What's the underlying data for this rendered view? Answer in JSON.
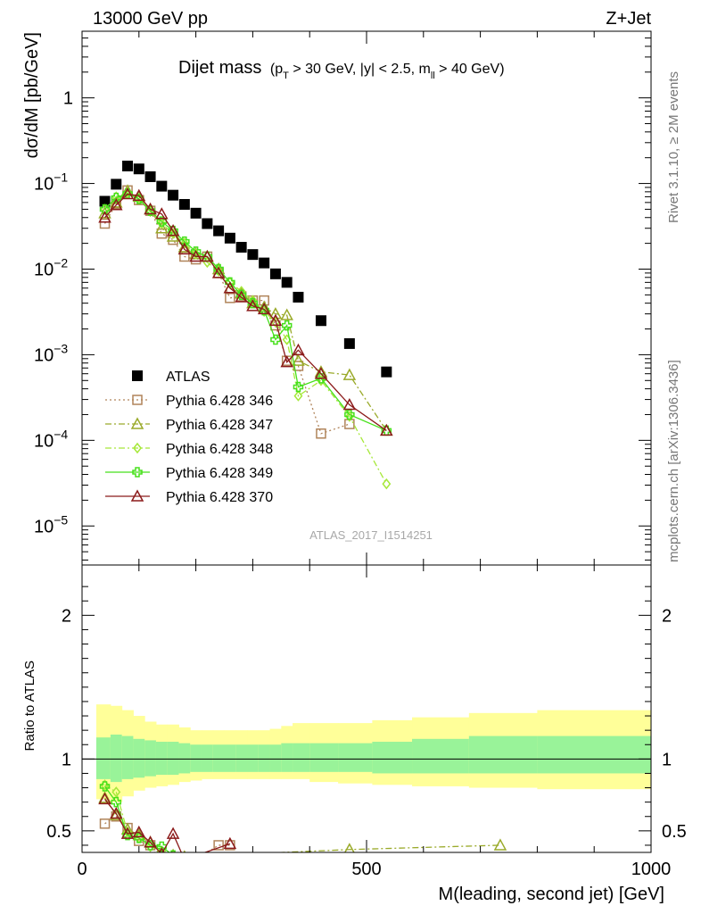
{
  "header": {
    "energy_label": "13000 GeV pp",
    "process_label": "Z+Jet"
  },
  "side_labels": {
    "right_top": "Rivet 3.1.10, ≥ 2M events",
    "right_bottom": "mcplots.cern.ch [arXiv:1306.3436]"
  },
  "chart_data": [
    {
      "type": "scatter",
      "title": "Dijet mass",
      "title_main": "Dijet mass",
      "title_pt_p": "p",
      "title_pt_sub": "T",
      "title_pt_rest": " > 30 GeV, |y| < 2.5, m",
      "title_m_sub": "ll",
      "title_m_rest": " > 40 GeV)",
      "title_open": "(",
      "ylabel": "dσ/dM [pb/GeV]",
      "xlabel": "M(leading, second jet) [GeV]",
      "yscale": "log",
      "xlim": [
        0,
        1000
      ],
      "ylim": [
        3.5e-06,
        6.0
      ],
      "y_ticks": [
        {
          "value": 1,
          "label": "1",
          "exp": ""
        },
        {
          "value": 0.1,
          "label": "10",
          "exp": "−1"
        },
        {
          "value": 0.01,
          "label": "10",
          "exp": "−2"
        },
        {
          "value": 0.001,
          "label": "10",
          "exp": "−3"
        },
        {
          "value": 0.0001,
          "label": "10",
          "exp": "−4"
        },
        {
          "value": 1e-05,
          "label": "10",
          "exp": "−5"
        }
      ],
      "watermark": "ATLAS_2017_I1514251",
      "legend_position": "lower-left",
      "x": [
        40,
        60,
        80,
        100,
        120,
        140,
        160,
        180,
        200,
        220,
        240,
        260,
        280,
        300,
        320,
        340,
        360,
        380,
        420,
        470,
        535,
        625,
        735,
        900
      ],
      "series": [
        {
          "name": "ATLAS",
          "color": "#000000",
          "marker": "square-filled",
          "values": [
            0.062,
            0.098,
            0.16,
            0.148,
            0.12,
            0.093,
            0.073,
            0.057,
            0.045,
            0.034,
            0.028,
            0.023,
            0.018,
            0.0148,
            0.0118,
            0.0088,
            0.007,
            0.0047,
            0.0025,
            0.00135,
            0.00063,
            null,
            null,
            null
          ]
        },
        {
          "name": "Pythia 6.428 346",
          "color": "#b0845a",
          "marker": "square-open",
          "line": "dotted",
          "values": [
            0.034,
            0.058,
            0.083,
            0.064,
            0.048,
            0.026,
            0.022,
            0.014,
            0.013,
            0.014,
            0.009,
            0.0046,
            0.0048,
            0.0043,
            0.0043,
            0.0022,
            0.00085,
            0.00074,
            0.00012,
            0.000155,
            null,
            null,
            null,
            null
          ]
        },
        {
          "name": "Pythia 6.428 347",
          "color": "#9aaa2a",
          "marker": "triangle-open",
          "line": "dashdot",
          "values": [
            0.045,
            0.06,
            0.082,
            0.07,
            0.05,
            0.03,
            0.024,
            0.018,
            0.015,
            0.014,
            0.01,
            0.006,
            0.0052,
            0.004,
            0.0036,
            0.003,
            0.0029,
            0.00085,
            0.00063,
            0.00058,
            0.00013,
            null,
            null,
            null
          ]
        },
        {
          "name": "Pythia 6.428 348",
          "color": "#a6e83a",
          "marker": "diamond-open",
          "line": "dashdot",
          "values": [
            0.05,
            0.07,
            0.078,
            0.066,
            0.047,
            0.034,
            0.026,
            0.02,
            0.015,
            0.012,
            0.0095,
            0.007,
            0.0055,
            0.0043,
            0.0032,
            0.0024,
            0.0015,
            0.00033,
            0.0005,
            0.00019,
            3.1e-05,
            null,
            null,
            null
          ]
        },
        {
          "name": "Pythia 6.428 349",
          "color": "#46e01a",
          "marker": "cross-open",
          "line": "solid",
          "values": [
            0.05,
            0.068,
            0.076,
            0.066,
            0.048,
            0.036,
            0.028,
            0.021,
            0.016,
            0.014,
            0.01,
            0.007,
            0.005,
            0.004,
            0.0033,
            0.0015,
            0.0022,
            0.00042,
            0.00053,
            0.0002,
            0.00013,
            null,
            null,
            null
          ]
        },
        {
          "name": "Pythia 6.428 370",
          "color": "#8b1a1a",
          "marker": "triangle-open",
          "line": "solid",
          "values": [
            0.04,
            0.056,
            0.075,
            0.072,
            0.05,
            0.044,
            0.028,
            0.017,
            0.014,
            0.014,
            0.009,
            0.006,
            0.0047,
            0.0037,
            0.0034,
            0.0025,
            0.00082,
            0.00113,
            0.0006,
            0.00026,
            0.00013,
            null,
            null,
            null
          ]
        }
      ]
    },
    {
      "type": "scatter",
      "ylabel": "Ratio to ATLAS",
      "xlim": [
        0,
        1000
      ],
      "ylim": [
        0.35,
        2.35
      ],
      "x_ticks": [
        {
          "value": 0,
          "label": "0"
        },
        {
          "value": 500,
          "label": "500"
        },
        {
          "value": 1000,
          "label": "1000"
        }
      ],
      "y_ticks": [
        {
          "value": 0.5,
          "label": "0.5"
        },
        {
          "value": 1,
          "label": "1"
        },
        {
          "value": 2,
          "label": "2"
        }
      ],
      "bands": {
        "edges": [
          25,
          50,
          70,
          90,
          110,
          130,
          150,
          170,
          190,
          210,
          230,
          250,
          270,
          290,
          310,
          330,
          350,
          370,
          400,
          450,
          510,
          580,
          680,
          800,
          1000
        ],
        "green_color": "#99f399",
        "yellow_color": "#ffff99",
        "green_lo": [
          0.86,
          0.84,
          0.86,
          0.87,
          0.88,
          0.89,
          0.89,
          0.9,
          0.91,
          0.91,
          0.91,
          0.91,
          0.91,
          0.91,
          0.91,
          0.91,
          0.91,
          0.91,
          0.91,
          0.91,
          0.9,
          0.9,
          0.9,
          0.9
        ],
        "green_hi": [
          1.15,
          1.17,
          1.16,
          1.14,
          1.13,
          1.12,
          1.12,
          1.11,
          1.1,
          1.1,
          1.1,
          1.1,
          1.1,
          1.1,
          1.1,
          1.1,
          1.11,
          1.11,
          1.11,
          1.11,
          1.12,
          1.14,
          1.16,
          1.16
        ],
        "yellow_lo": [
          0.72,
          0.7,
          0.74,
          0.78,
          0.8,
          0.81,
          0.82,
          0.84,
          0.85,
          0.86,
          0.86,
          0.86,
          0.86,
          0.86,
          0.86,
          0.86,
          0.86,
          0.86,
          0.84,
          0.83,
          0.82,
          0.81,
          0.8,
          0.79
        ],
        "yellow_hi": [
          1.38,
          1.37,
          1.34,
          1.3,
          1.26,
          1.24,
          1.24,
          1.22,
          1.2,
          1.2,
          1.2,
          1.2,
          1.2,
          1.2,
          1.2,
          1.21,
          1.23,
          1.25,
          1.25,
          1.25,
          1.27,
          1.29,
          1.32,
          1.34
        ]
      },
      "ratio_series": [
        {
          "name": "Pythia 6.428 346",
          "x": [
            40,
            60,
            80,
            100,
            120,
            140,
            160,
            180,
            240,
            260
          ],
          "values": [
            0.55,
            0.6,
            0.52,
            0.43,
            0.4,
            0.27,
            0.3,
            0.25,
            0.4,
            0.4
          ]
        },
        {
          "name": "Pythia 6.428 347",
          "x": [
            40,
            60,
            80,
            100,
            120,
            140,
            160,
            180,
            470,
            735
          ],
          "values": [
            0.73,
            0.61,
            0.51,
            0.47,
            0.42,
            0.32,
            0.33,
            0.32,
            0.37,
            0.4
          ]
        },
        {
          "name": "Pythia 6.428 348",
          "x": [
            40,
            60,
            80,
            100,
            120,
            140,
            160,
            180
          ],
          "values": [
            0.82,
            0.77,
            0.49,
            0.45,
            0.39,
            0.36,
            0.3,
            0.28
          ]
        },
        {
          "name": "Pythia 6.428 349",
          "x": [
            40,
            60,
            80,
            100,
            120,
            140,
            160,
            180
          ],
          "values": [
            0.81,
            0.7,
            0.47,
            0.45,
            0.4,
            0.39,
            0.33,
            0.3
          ]
        },
        {
          "name": "Pythia 6.428 370",
          "x": [
            40,
            60,
            80,
            100,
            120,
            140,
            160,
            180,
            260
          ],
          "values": [
            0.72,
            0.62,
            0.48,
            0.49,
            0.42,
            0.34,
            0.48,
            0.3,
            0.41
          ]
        }
      ]
    }
  ]
}
